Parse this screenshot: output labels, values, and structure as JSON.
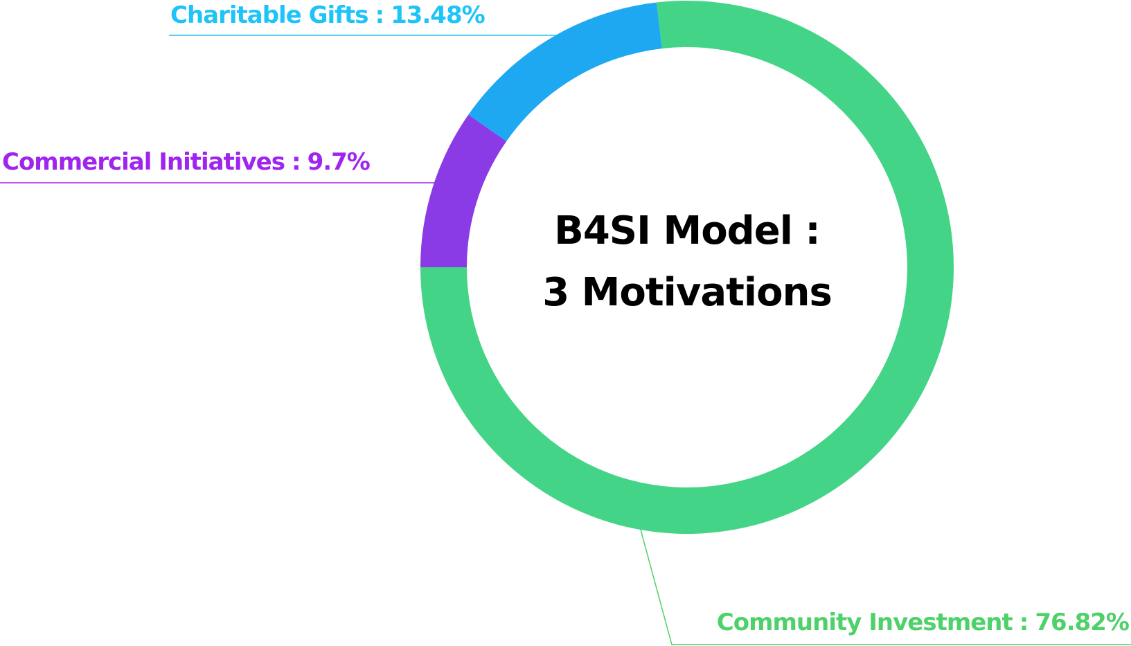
{
  "chart_data": {
    "type": "donut",
    "center_text": [
      "B4SI Model :",
      "3 Motivations"
    ],
    "categories": [
      "Commercial Initiatives",
      "Charitable Gifts",
      "Community Investment"
    ],
    "values": [
      9.7,
      13.48,
      76.82
    ],
    "value_labels": [
      "9.7%",
      "13.48%",
      "76.82%"
    ],
    "separator": ":",
    "colors": [
      "#8a3be6",
      "#1ea8f2",
      "#44d487"
    ],
    "label_colors": [
      "#a024f0",
      "#1ec3f8",
      "#4fd16a"
    ]
  }
}
